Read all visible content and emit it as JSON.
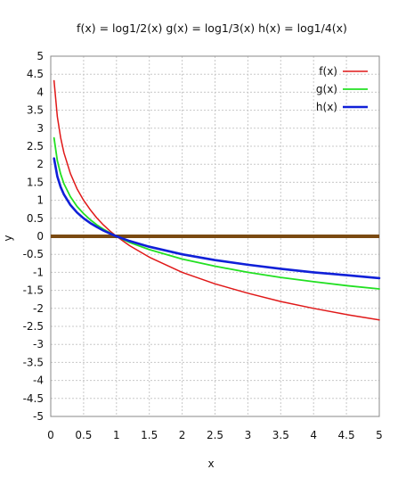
{
  "chart_data": {
    "type": "line",
    "title": "f(x) = log1/2(x)  g(x) = log1/3(x)  h(x) = log1/4(x)",
    "xlabel": "x",
    "ylabel": "y",
    "xlim": [
      0,
      5
    ],
    "ylim": [
      -5,
      5
    ],
    "x_ticks": [
      "0",
      "0.5",
      "1",
      "1.5",
      "2",
      "2.5",
      "3",
      "3.5",
      "4",
      "4.5",
      "5"
    ],
    "y_ticks": [
      "5",
      "4.5",
      "4",
      "3.5",
      "3",
      "2.5",
      "2",
      "1.5",
      "1",
      "0.5",
      "0",
      "-0.5",
      "-1",
      "-1.5",
      "-2",
      "-2.5",
      "-3",
      "-3.5",
      "-4",
      "-4.5",
      "-5"
    ],
    "grid": true,
    "legend_position": "top-right",
    "x_axis_line_color": "#7a4a12",
    "series": [
      {
        "name": "f(x)",
        "color": "#e01818",
        "x": [
          0.05,
          0.1,
          0.15,
          0.2,
          0.3,
          0.4,
          0.5,
          0.6,
          0.7,
          0.8,
          0.9,
          1,
          1.2,
          1.5,
          2,
          2.5,
          3,
          3.5,
          4,
          4.5,
          5
        ],
        "y": [
          4.32,
          3.32,
          2.74,
          2.32,
          1.74,
          1.32,
          1.0,
          0.74,
          0.51,
          0.32,
          0.15,
          0,
          -0.26,
          -0.58,
          -1.0,
          -1.32,
          -1.58,
          -1.81,
          -2.0,
          -2.17,
          -2.32
        ]
      },
      {
        "name": "g(x)",
        "color": "#22e022",
        "x": [
          0.05,
          0.1,
          0.15,
          0.2,
          0.3,
          0.4,
          0.5,
          0.6,
          0.7,
          0.8,
          0.9,
          1,
          1.2,
          1.5,
          2,
          2.5,
          3,
          3.5,
          4,
          4.5,
          5
        ],
        "y": [
          2.73,
          2.1,
          1.73,
          1.46,
          1.1,
          0.83,
          0.63,
          0.46,
          0.32,
          0.2,
          0.1,
          0,
          -0.17,
          -0.37,
          -0.63,
          -0.83,
          -1.0,
          -1.14,
          -1.26,
          -1.37,
          -1.46
        ]
      },
      {
        "name": "h(x)",
        "color": "#1020d8",
        "x": [
          0.05,
          0.1,
          0.15,
          0.2,
          0.3,
          0.4,
          0.5,
          0.6,
          0.7,
          0.8,
          0.9,
          1,
          1.2,
          1.5,
          2,
          2.5,
          3,
          3.5,
          4,
          4.5,
          5
        ],
        "y": [
          2.16,
          1.66,
          1.37,
          1.16,
          0.87,
          0.66,
          0.5,
          0.37,
          0.26,
          0.16,
          0.08,
          0,
          -0.13,
          -0.29,
          -0.5,
          -0.66,
          -0.79,
          -0.9,
          -1.0,
          -1.08,
          -1.16
        ]
      }
    ]
  }
}
